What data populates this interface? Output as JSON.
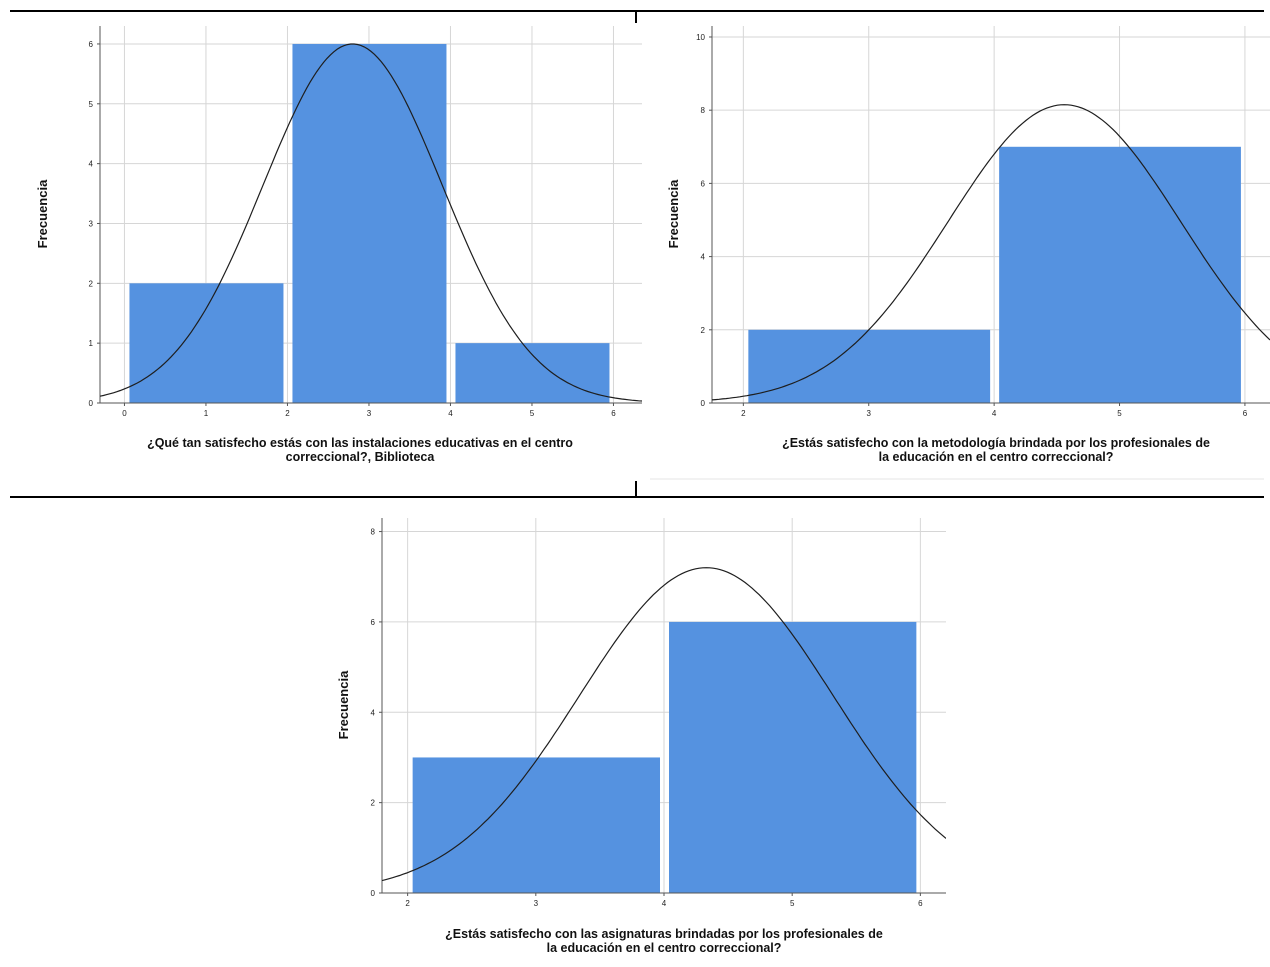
{
  "chart_data": [
    {
      "type": "bar",
      "subtype": "histogram",
      "ylabel": "Frecuencia",
      "xlabel_lines": [
        "¿Qué tan satisfecho estás con las instalaciones educativas en el centro",
        "correccional?, Biblioteca"
      ],
      "bins": [
        {
          "from": 0,
          "to": 2,
          "value": 2
        },
        {
          "from": 2,
          "to": 4,
          "value": 6
        },
        {
          "from": 4,
          "to": 6,
          "value": 1
        }
      ],
      "xlim": [
        -0.3,
        6.35
      ],
      "ylim": [
        0,
        6.3
      ],
      "xticks": [
        0,
        1,
        2,
        3,
        4,
        5,
        6
      ],
      "yticks": [
        0,
        1,
        2,
        3,
        4,
        5,
        6
      ],
      "normal_curve": {
        "mean": 2.8,
        "sd": 1.1,
        "peak": 6.0
      },
      "grid": true
    },
    {
      "type": "bar",
      "subtype": "histogram",
      "ylabel": "Frecuencia",
      "xlabel_lines": [
        "¿Estás satisfecho con la metodología brindada por los profesionales de",
        "la educación en el centro correccional?"
      ],
      "bins": [
        {
          "from": 2,
          "to": 4,
          "value": 2
        },
        {
          "from": 4,
          "to": 6,
          "value": 7
        }
      ],
      "xlim": [
        1.75,
        6.2
      ],
      "ylim": [
        0,
        10.3
      ],
      "xticks": [
        2,
        3,
        4,
        5,
        6
      ],
      "yticks": [
        0,
        2,
        4,
        6,
        8,
        10
      ],
      "normal_curve": {
        "mean": 4.56,
        "sd": 0.93,
        "peak": 8.15
      },
      "grid": true
    },
    {
      "type": "bar",
      "subtype": "histogram",
      "ylabel": "Frecuencia",
      "xlabel_lines": [
        "¿Estás satisfecho con las asignaturas brindadas  por los profesionales de",
        "la educación en el centro correccional?"
      ],
      "bins": [
        {
          "from": 2,
          "to": 4,
          "value": 3
        },
        {
          "from": 4,
          "to": 6,
          "value": 6
        }
      ],
      "xlim": [
        1.8,
        6.2
      ],
      "ylim": [
        0,
        8.3
      ],
      "xticks": [
        2,
        3,
        4,
        5,
        6
      ],
      "yticks": [
        0,
        2,
        4,
        6,
        8
      ],
      "normal_curve": {
        "mean": 4.33,
        "sd": 0.99,
        "peak": 7.2
      },
      "grid": true
    }
  ]
}
